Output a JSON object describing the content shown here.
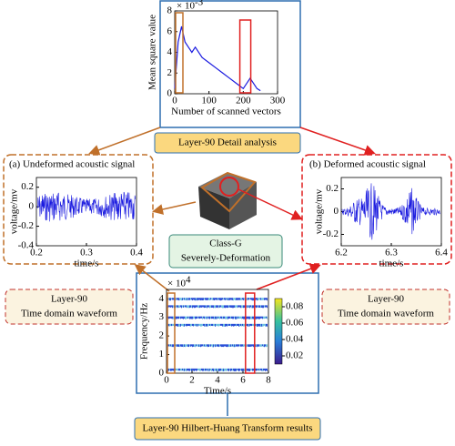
{
  "top_panel": {
    "caption": "Layer-90 Detail analysis",
    "ylabel": "Mean square value",
    "xlabel": "Number of scanned vectors",
    "exponent": "× 10",
    "exponent_power": "-3",
    "xlim": [
      0,
      300
    ],
    "ylim": [
      0,
      8
    ],
    "xticks": [
      0,
      100,
      200,
      300
    ],
    "yticks": [
      0,
      2,
      4,
      6,
      8
    ],
    "x": [
      0,
      10,
      20,
      30,
      40,
      50,
      60,
      80,
      100,
      120,
      140,
      160,
      180,
      200,
      220,
      240,
      250
    ],
    "values": [
      0.5,
      5,
      6.5,
      5,
      4.5,
      4,
      4.5,
      3.5,
      3,
      2.5,
      2,
      1.5,
      1,
      0.5,
      1.5,
      0.5,
      0.3
    ]
  },
  "left_panel": {
    "title": "(a) Undeformed acoustic signal",
    "ylabel": "voltage/mv",
    "xlabel": "time/s",
    "xlim": [
      0.2,
      0.4
    ],
    "ylim": [
      -0.4,
      0.3
    ],
    "xticks": [
      0.2,
      0.3,
      0.4
    ],
    "yticks": [
      -0.4,
      -0.2,
      0,
      0.2
    ],
    "caption": [
      "Layer-90",
      "Time domain waveform"
    ]
  },
  "right_panel": {
    "title": "(b) Deformed  acoustic signal",
    "ylabel": "voltage/mv",
    "xlabel": "time/s",
    "xlim": [
      6.2,
      6.4
    ],
    "ylim": [
      -0.3,
      0.3
    ],
    "xticks": [
      6.2,
      6.3,
      6.4
    ],
    "yticks": [
      -0.2,
      0,
      0.2
    ],
    "caption": [
      "Layer-90",
      "Time domain waveform"
    ]
  },
  "center": {
    "label": [
      "Class-G",
      "Severely-Deformation"
    ]
  },
  "bottom_panel": {
    "caption": "Layer-90 Hilbert-Huang Transform results",
    "ylabel": "Frequency/Hz",
    "xlabel": "Time/s",
    "exponent": "× 10",
    "exponent_power": "4",
    "xlim": [
      0,
      8
    ],
    "ylim": [
      0,
      4.5
    ],
    "xticks": [
      0,
      2,
      4,
      6,
      8
    ],
    "yticks": [
      0,
      1,
      2,
      3,
      4
    ],
    "clim": [
      0.01,
      0.09
    ],
    "cticks": [
      0.02,
      0.04,
      0.06,
      0.08
    ]
  }
}
